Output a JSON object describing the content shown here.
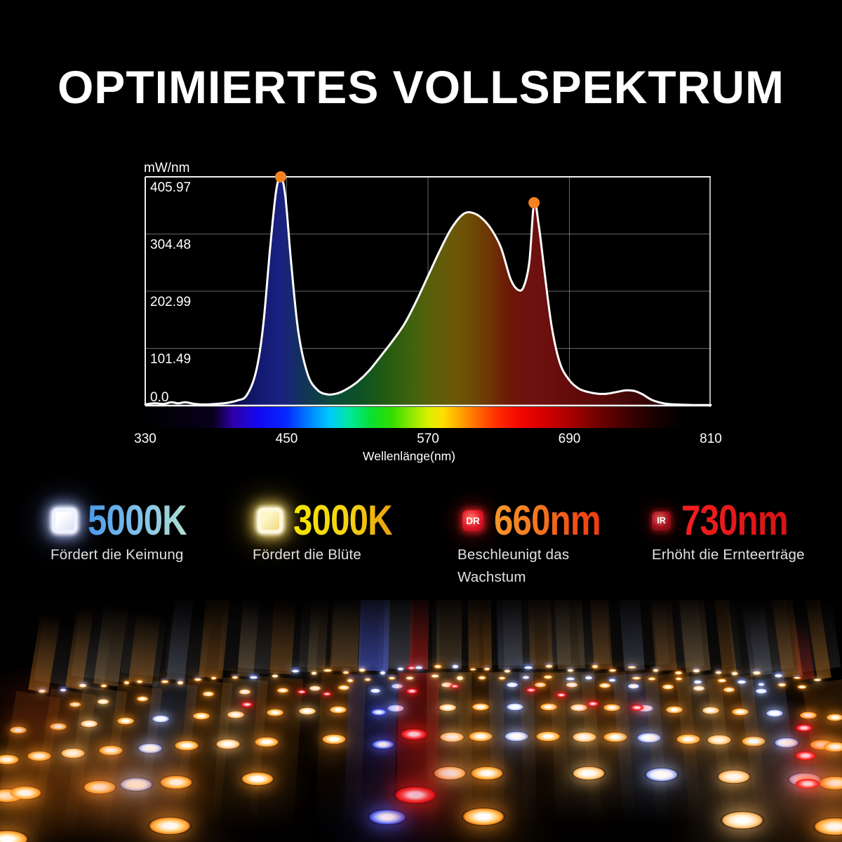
{
  "title": "OPTIMIERTES VOLLSPEKTRUM",
  "chart_data": {
    "type": "area",
    "title": "",
    "xlabel": "Wellenlänge(nm)",
    "ylabel": "mW/nm",
    "xlim": [
      330,
      810
    ],
    "ylim": [
      0,
      405.97
    ],
    "x_ticks": [
      330,
      450,
      570,
      690,
      810
    ],
    "x_tick_labels": [
      "330",
      "450",
      "570",
      "690",
      "810"
    ],
    "x_gridlines": [
      450,
      570,
      690
    ],
    "y_ticks": [
      405.97,
      304.48,
      202.99,
      101.49,
      0
    ],
    "y_tick_labels": [
      "405.97",
      "304.48",
      "202.99",
      "101.49",
      "0.0"
    ],
    "grid": true,
    "legend": "none",
    "spectrum_colorbar": true,
    "series": [
      {
        "name": "spectral power distribution",
        "x": [
          330,
          338,
          346,
          352,
          358,
          364,
          372,
          380,
          390,
          400,
          408,
          416,
          424,
          430,
          436,
          441,
          445,
          449,
          454,
          460,
          468,
          476,
          484,
          492,
          500,
          510,
          520,
          530,
          540,
          550,
          560,
          570,
          580,
          590,
          600,
          608,
          616,
          624,
          632,
          640,
          646,
          651,
          656,
          660,
          664,
          669,
          675,
          682,
          690,
          698,
          706,
          714,
          722,
          730,
          738,
          745,
          752,
          760,
          770,
          780,
          795,
          810
        ],
        "y": [
          2,
          4,
          3,
          6,
          4,
          6,
          3,
          2,
          3,
          5,
          9,
          18,
          60,
          140,
          280,
          380,
          405.97,
          370,
          250,
          130,
          55,
          28,
          20,
          21,
          28,
          42,
          62,
          88,
          115,
          145,
          185,
          230,
          275,
          315,
          340,
          342,
          332,
          312,
          280,
          225,
          206,
          210,
          255,
          360,
          320,
          235,
          140,
          75,
          45,
          30,
          24,
          21,
          21,
          24,
          27,
          26,
          20,
          10,
          4,
          2,
          1,
          1
        ]
      }
    ],
    "markers": [
      {
        "x": 445,
        "y": 405.97,
        "label": "blue peak"
      },
      {
        "x": 660,
        "y": 360,
        "label": "red peak"
      }
    ]
  },
  "features": [
    {
      "value": "5000K",
      "badge": "",
      "label": "Fördert die Keimung"
    },
    {
      "value": "3000K",
      "badge": "",
      "label": "Fördert die Blüte"
    },
    {
      "value": "660nm",
      "badge": "DR",
      "label": "Beschleunigt das Wachstum"
    },
    {
      "value": "730nm",
      "badge": "IR",
      "label": "Erhöht die Ernteerträge"
    }
  ],
  "colors": {
    "background": "#000000",
    "curve": "#ffffff",
    "peak_marker": "#f58220",
    "grid": "rgba(255,255,255,0.40)",
    "frame": "#f0f0f0",
    "accent_5000k": "#74b6e8",
    "accent_3000k": "#f2d50a",
    "accent_660nm": "#f3731f",
    "accent_730nm": "#ea1a1a"
  }
}
